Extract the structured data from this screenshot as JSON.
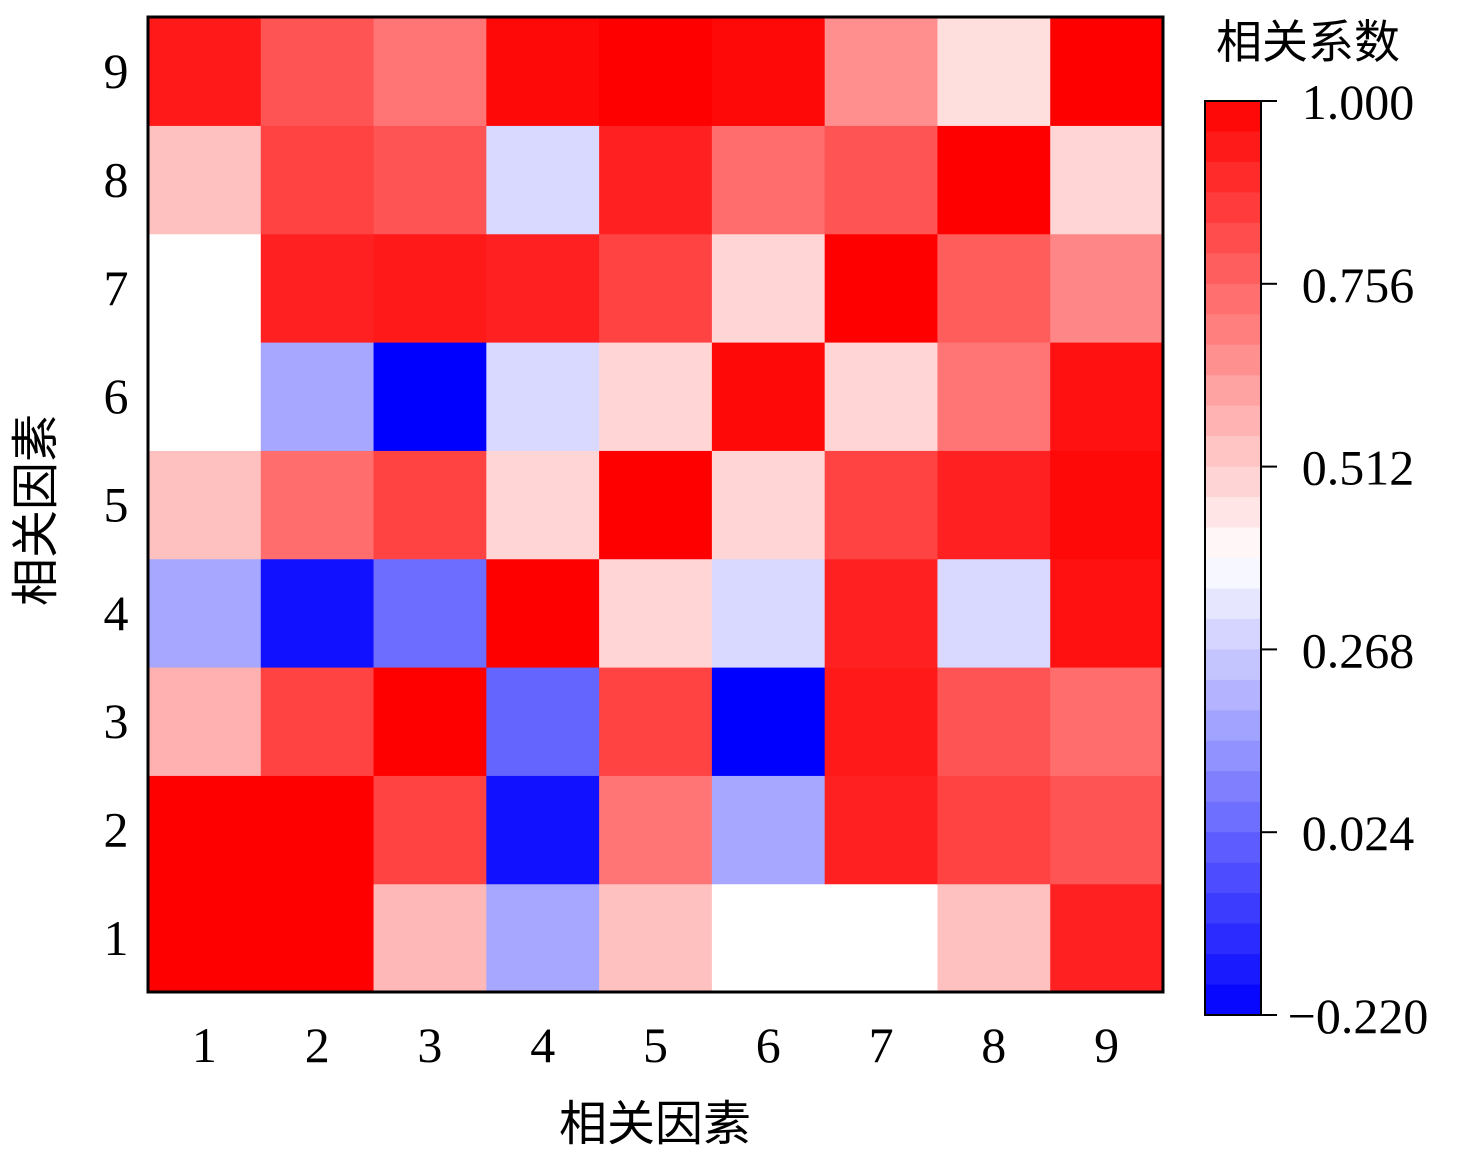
{
  "chart_data": {
    "type": "heatmap",
    "xlabel": "相关因素",
    "ylabel": "相关因素",
    "x_categories": [
      "1",
      "2",
      "3",
      "4",
      "5",
      "6",
      "7",
      "8",
      "9"
    ],
    "y_categories": [
      "1",
      "2",
      "3",
      "4",
      "5",
      "6",
      "7",
      "8",
      "9"
    ],
    "rows_bottom_to_top": [
      [
        1.0,
        1.0,
        0.56,
        0.18,
        0.54,
        0.39,
        0.39,
        0.54,
        0.92
      ],
      [
        1.0,
        1.0,
        0.84,
        -0.18,
        0.72,
        0.18,
        0.92,
        0.84,
        0.8
      ],
      [
        0.58,
        0.84,
        1.0,
        0.02,
        0.84,
        -0.22,
        0.94,
        0.8,
        0.74
      ],
      [
        0.18,
        -0.18,
        0.04,
        1.0,
        0.49,
        0.3,
        0.92,
        0.3,
        0.96
      ],
      [
        0.54,
        0.74,
        0.84,
        0.49,
        1.0,
        0.49,
        0.84,
        0.92,
        0.98
      ],
      [
        0.39,
        0.18,
        -0.22,
        0.3,
        0.49,
        0.98,
        0.49,
        0.72,
        0.96
      ],
      [
        0.39,
        0.92,
        0.94,
        0.92,
        0.84,
        0.49,
        1.0,
        0.78,
        0.68
      ],
      [
        0.54,
        0.84,
        0.8,
        0.3,
        0.92,
        0.74,
        0.8,
        1.0,
        0.49
      ],
      [
        0.94,
        0.8,
        0.72,
        0.98,
        1.0,
        0.98,
        0.66,
        0.47,
        1.0
      ]
    ],
    "colorbar": {
      "title": "相关系数",
      "min": -0.22,
      "max": 1.0,
      "ticks": [
        "1.000",
        "0.756",
        "0.512",
        "0.268",
        "0.024",
        "−0.220"
      ],
      "tick_values": [
        1.0,
        0.756,
        0.512,
        0.268,
        0.024,
        -0.22
      ],
      "low_color": "#0000ff",
      "mid_color": "#ffffff",
      "high_color": "#ff0000"
    }
  }
}
